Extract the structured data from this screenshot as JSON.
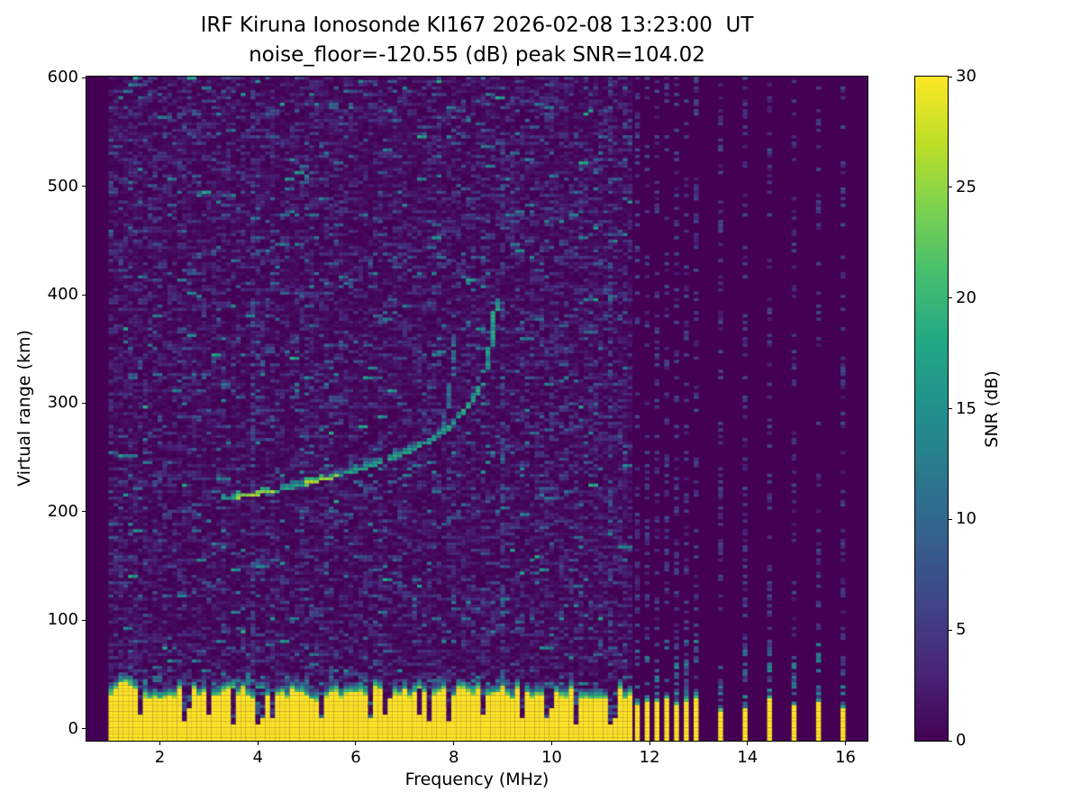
{
  "title": {
    "line1": "IRF Kiruna Ionosonde KI167 2026-02-08 13:23:00  UT",
    "line2": "noise_floor=-120.55 (dB) peak SNR=104.02"
  },
  "chart_data": {
    "type": "heatmap",
    "title": "IRF Kiruna Ionosonde KI167 2026-02-08 13:23:00  UT",
    "subtitle": "noise_floor=-120.55 (dB) peak SNR=104.02",
    "station": "KI167",
    "timestamp_ut": "2026-02-08 13:23:00",
    "noise_floor_db": -120.55,
    "peak_snr_db": 104.02,
    "xlabel": "Frequency (MHz)",
    "ylabel": "Virtual range (km)",
    "xlim": [
      0.5,
      16.45
    ],
    "ylim": [
      -11,
      601
    ],
    "xticks": [
      2,
      4,
      6,
      8,
      10,
      12,
      14,
      16
    ],
    "yticks": [
      0,
      100,
      200,
      300,
      400,
      500,
      600
    ],
    "grid": false,
    "colorbar": {
      "label": "SNR (dB)",
      "min": 0,
      "max": 30,
      "ticks": [
        0,
        5,
        10,
        15,
        20,
        25,
        30
      ],
      "colormap": "viridis"
    },
    "background_db": 0,
    "sweep": {
      "freq_start_mhz": 1.0,
      "freq_end_mhz": 16.4,
      "continuous_until_mhz": 11.6,
      "freq_step_mhz": 0.1,
      "range_step_km": 3,
      "sparse_frequencies_mhz": [
        11.75,
        11.95,
        12.15,
        12.35,
        12.55,
        12.75,
        12.95,
        13.45,
        13.95,
        14.45,
        14.95,
        15.45,
        15.95
      ]
    },
    "ground_clutter": {
      "mean_top_km": 32,
      "solid_snr_db": 30,
      "notch_frequencies_mhz": [
        1.65,
        2.55,
        3.0,
        3.55,
        3.95,
        4.3,
        5.3,
        6.3,
        6.6,
        7.25,
        7.5,
        7.9,
        8.55,
        9.45,
        9.9,
        10.5,
        11.15
      ],
      "sparse_stub_top_km": 24
    },
    "rfi_column_frequencies_mhz": [
      3.85,
      9.0,
      11.2
    ],
    "echo_trace": {
      "o_mode_points": [
        [
          3.3,
          212
        ],
        [
          3.65,
          214
        ],
        [
          4.0,
          217
        ],
        [
          4.4,
          220
        ],
        [
          4.8,
          224
        ],
        [
          5.2,
          228
        ],
        [
          5.6,
          233
        ],
        [
          6.0,
          238
        ],
        [
          6.4,
          244
        ],
        [
          6.8,
          250
        ],
        [
          7.2,
          258
        ],
        [
          7.6,
          268
        ],
        [
          7.9,
          278
        ],
        [
          8.2,
          291
        ],
        [
          8.4,
          304
        ],
        [
          8.55,
          318
        ],
        [
          8.65,
          332
        ],
        [
          8.73,
          348
        ],
        [
          8.79,
          363
        ],
        [
          8.84,
          378
        ],
        [
          8.87,
          392
        ]
      ],
      "critical_frequency_mhz": 8.9,
      "bright_segments_mhz": [
        [
          3.6,
          4.35
        ],
        [
          4.95,
          5.6
        ]
      ],
      "x_mode_points": [
        [
          7.72,
          268
        ],
        [
          7.82,
          285
        ],
        [
          7.9,
          305
        ],
        [
          7.96,
          325
        ],
        [
          8.0,
          342
        ],
        [
          8.02,
          358
        ]
      ],
      "o_mode_db": 14,
      "x_mode_db": 8
    },
    "noise": {
      "seed": 167,
      "dash_db_range": [
        2,
        9
      ],
      "bright_dash_db_range": [
        9,
        19
      ]
    }
  }
}
